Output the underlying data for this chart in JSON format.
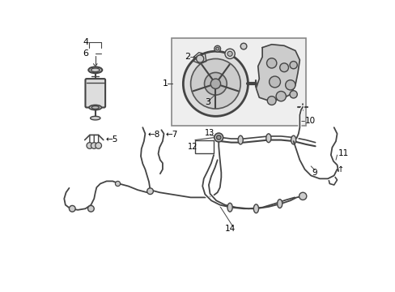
{
  "bg_color": "#ffffff",
  "line_color": "#444444",
  "label_color": "#000000",
  "figsize": [
    4.89,
    3.6
  ],
  "dpi": 100
}
